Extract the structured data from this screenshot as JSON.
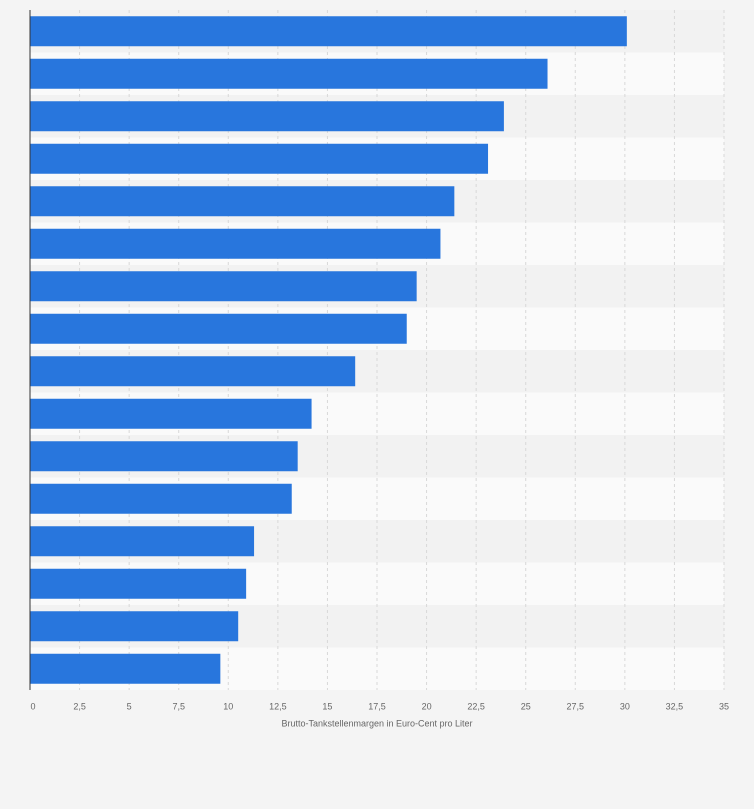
{
  "chart_data": {
    "type": "barh",
    "categories": [
      null,
      null,
      null,
      null,
      null,
      null,
      null,
      null,
      null,
      null,
      null,
      null,
      null,
      null,
      null,
      null
    ],
    "values": [
      30.1,
      26.1,
      23.9,
      23.1,
      21.4,
      20.7,
      19.5,
      19.0,
      16.4,
      14.2,
      13.5,
      13.2,
      11.3,
      10.9,
      10.5,
      9.6
    ],
    "color": "#2876dd",
    "xlabel": "Brutto-Tankstellenmargen in Euro-Cent pro Liter",
    "xlim": [
      0,
      35
    ],
    "xticks": [
      0,
      {
        "value": 2.5,
        "label": "2,5"
      },
      5,
      {
        "value": 7.5,
        "label": "7,5"
      },
      10,
      {
        "value": 12.5,
        "label": "12,5"
      },
      15,
      {
        "value": 17.5,
        "label": "17,5"
      },
      20,
      {
        "value": 22.5,
        "label": "22,5"
      },
      25,
      {
        "value": 27.5,
        "label": "27,5"
      },
      30,
      {
        "value": 32.5,
        "label": "32,5"
      },
      35
    ],
    "grid": true
  }
}
